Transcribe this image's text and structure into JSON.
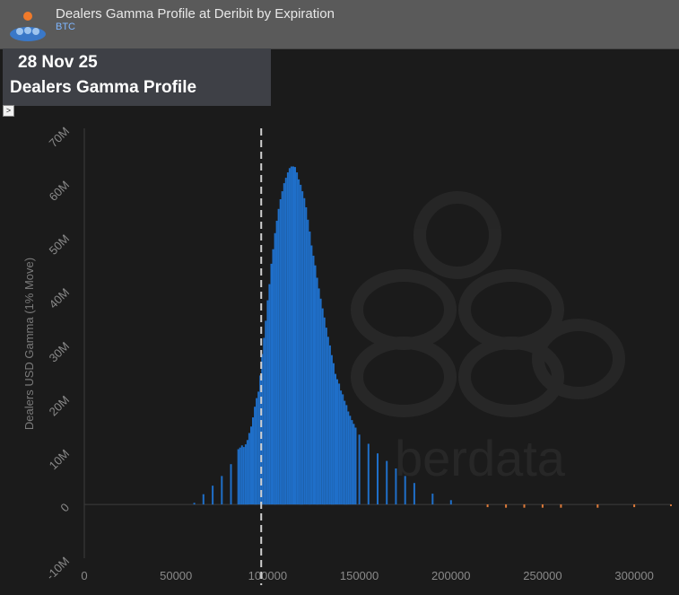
{
  "header": {
    "title": "Dealers Gamma Profile at Deribit by Expiration",
    "asset": "BTC"
  },
  "infobox": {
    "date": "28 Nov 25",
    "label": "Dealers Gamma Profile"
  },
  "toggle_glyph": ">",
  "watermark": "berdata",
  "chart_data": {
    "type": "bar",
    "ylabel": "Dealers USD Gamma (1% Move)",
    "xlim": [
      0,
      320000
    ],
    "ylim": [
      -10000000,
      70000000
    ],
    "x_ticks": [
      0,
      50000,
      100000,
      150000,
      200000,
      250000,
      300000
    ],
    "x_tick_labels": [
      "0",
      "50000",
      "100000",
      "150000",
      "200000",
      "250000",
      "300000"
    ],
    "y_ticks": [
      -10000000,
      0,
      10000000,
      20000000,
      30000000,
      40000000,
      50000000,
      60000000,
      70000000
    ],
    "y_tick_labels": [
      "-10M",
      "0",
      "10M",
      "20M",
      "30M",
      "40M",
      "50M",
      "60M",
      "70M"
    ],
    "spot_line_x": 96500,
    "positive_color": "#1f6fc9",
    "negative_color": "#e07b39",
    "strikes": [
      60000,
      65000,
      70000,
      75000,
      80000,
      84000,
      85000,
      86000,
      87000,
      88000,
      89000,
      90000,
      91000,
      92000,
      93000,
      94000,
      95000,
      96000,
      97000,
      98000,
      99000,
      100000,
      101000,
      102000,
      103000,
      104000,
      105000,
      106000,
      107000,
      108000,
      109000,
      110000,
      111000,
      112000,
      113000,
      114000,
      115000,
      116000,
      117000,
      118000,
      119000,
      120000,
      121000,
      122000,
      123000,
      124000,
      125000,
      126000,
      127000,
      128000,
      129000,
      130000,
      131000,
      132000,
      133000,
      134000,
      135000,
      136000,
      137000,
      138000,
      139000,
      140000,
      141000,
      142000,
      143000,
      144000,
      145000,
      146000,
      147000,
      148000,
      150000,
      155000,
      160000,
      165000,
      170000,
      175000,
      180000,
      190000,
      200000,
      220000,
      230000,
      240000,
      250000,
      260000,
      280000,
      300000,
      320000
    ],
    "values": [
      300000,
      1900000,
      3500000,
      5300000,
      7500000,
      10300000,
      10600000,
      11000000,
      10700000,
      11200000,
      12000000,
      13300000,
      14500000,
      16200000,
      18200000,
      19800000,
      21000000,
      24000000,
      28000000,
      31000000,
      34200000,
      38000000,
      41000000,
      44800000,
      47500000,
      50500000,
      52800000,
      55000000,
      56800000,
      58300000,
      59800000,
      60800000,
      61800000,
      62600000,
      62900000,
      62900000,
      62800000,
      61800000,
      60500000,
      59500000,
      58300000,
      57000000,
      55300000,
      53000000,
      50800000,
      48200000,
      46300000,
      44500000,
      42200000,
      40200000,
      38300000,
      36500000,
      34800000,
      32900000,
      31200000,
      29600000,
      27800000,
      26300000,
      24300000,
      23300000,
      22500000,
      21200000,
      20500000,
      19300000,
      18500000,
      17300000,
      16500000,
      15700000,
      15000000,
      14300000,
      13000000,
      11300000,
      9500000,
      8100000,
      6700000,
      5300000,
      4000000,
      2000000,
      800000,
      -500000,
      -600000,
      -600000,
      -600000,
      -600000,
      -600000,
      -500000,
      -300000
    ]
  }
}
